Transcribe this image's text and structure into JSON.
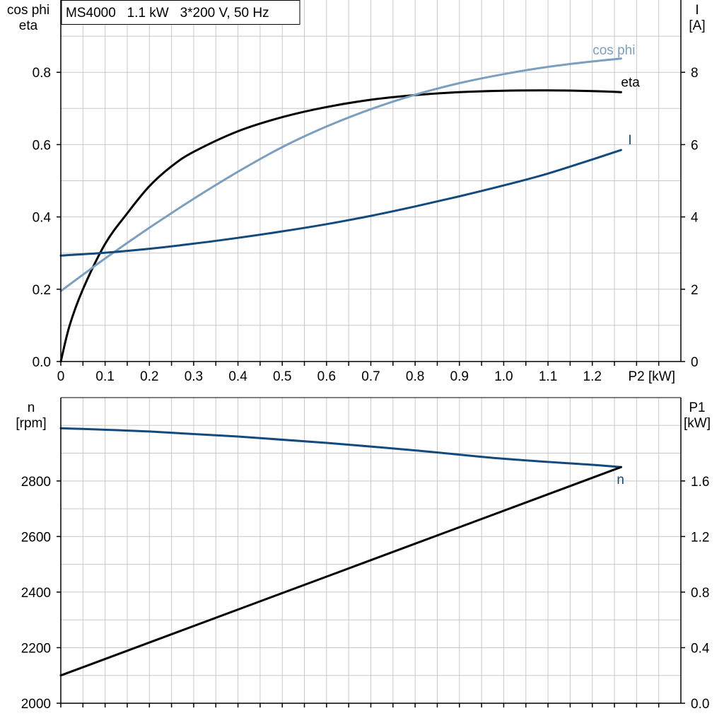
{
  "colors": {
    "grid": "#c8c8c8",
    "axis": "#000000",
    "eta": "#000000",
    "cos_phi": "#7a9fc0",
    "current": "#124a7d",
    "speed": "#124a7d",
    "p1": "#000000",
    "background": "#ffffff"
  },
  "chart_data": [
    {
      "type": "line",
      "title": "MS4000   1.1 kW   3*200 V, 50 Hz",
      "xlabel": "P2 [kW]",
      "xlim": [
        0,
        1.4
      ],
      "x_ticks": [
        "0",
        "0.1",
        "0.2",
        "0.3",
        "0.4",
        "0.5",
        "0.6",
        "0.7",
        "0.8",
        "0.9",
        "1.0",
        "1.1",
        "1.2"
      ],
      "left_axis": {
        "label_lines": [
          "cos phi",
          "eta"
        ],
        "ylim": [
          0,
          1.0
        ],
        "ticks": [
          "0.0",
          "0.2",
          "0.4",
          "0.6",
          "0.8"
        ]
      },
      "right_axis": {
        "label_lines": [
          "I",
          "[A]"
        ],
        "ylim": [
          0,
          10
        ],
        "ticks": [
          "0",
          "2",
          "4",
          "6",
          "8"
        ]
      },
      "grid": true,
      "series": [
        {
          "name": "eta",
          "axis": "left",
          "x": [
            0,
            0.02,
            0.05,
            0.1,
            0.15,
            0.2,
            0.25,
            0.3,
            0.4,
            0.5,
            0.6,
            0.7,
            0.8,
            0.9,
            1.0,
            1.1,
            1.2,
            1.265
          ],
          "values": [
            0.0,
            0.1,
            0.2,
            0.325,
            0.41,
            0.485,
            0.54,
            0.58,
            0.637,
            0.676,
            0.704,
            0.724,
            0.737,
            0.745,
            0.749,
            0.75,
            0.748,
            0.745
          ]
        },
        {
          "name": "cos phi",
          "axis": "left",
          "x": [
            0,
            0.1,
            0.2,
            0.3,
            0.4,
            0.5,
            0.6,
            0.7,
            0.8,
            0.9,
            1.0,
            1.1,
            1.2,
            1.265
          ],
          "values": [
            0.195,
            0.285,
            0.37,
            0.45,
            0.525,
            0.593,
            0.65,
            0.698,
            0.738,
            0.77,
            0.795,
            0.815,
            0.83,
            0.838
          ]
        },
        {
          "name": "I",
          "axis": "right",
          "x": [
            0,
            0.1,
            0.2,
            0.3,
            0.4,
            0.5,
            0.6,
            0.7,
            0.8,
            0.9,
            1.0,
            1.1,
            1.2,
            1.265
          ],
          "values": [
            2.93,
            3.01,
            3.12,
            3.26,
            3.42,
            3.6,
            3.8,
            4.03,
            4.29,
            4.57,
            4.87,
            5.2,
            5.59,
            5.85
          ]
        }
      ]
    },
    {
      "type": "line",
      "xlabel": "",
      "xlim": [
        0,
        1.4
      ],
      "left_axis": {
        "label_lines": [
          "n",
          "[rpm]"
        ],
        "ylim": [
          2000,
          3100
        ],
        "ticks": [
          "2000",
          "2200",
          "2400",
          "2600",
          "2800"
        ]
      },
      "right_axis": {
        "label_lines": [
          "P1",
          "[kW]"
        ],
        "ylim": [
          0,
          2.2
        ],
        "ticks": [
          "0.0",
          "0.4",
          "0.8",
          "1.2",
          "1.6"
        ]
      },
      "grid": true,
      "series": [
        {
          "name": "n",
          "axis": "left",
          "x": [
            0,
            0.2,
            0.4,
            0.6,
            0.8,
            1.0,
            1.2,
            1.265
          ],
          "values": [
            2990,
            2978,
            2960,
            2937,
            2910,
            2880,
            2858,
            2850
          ]
        },
        {
          "name": "",
          "axis": "right",
          "x": [
            0,
            1.265
          ],
          "values": [
            0.2,
            1.7
          ]
        }
      ]
    }
  ]
}
